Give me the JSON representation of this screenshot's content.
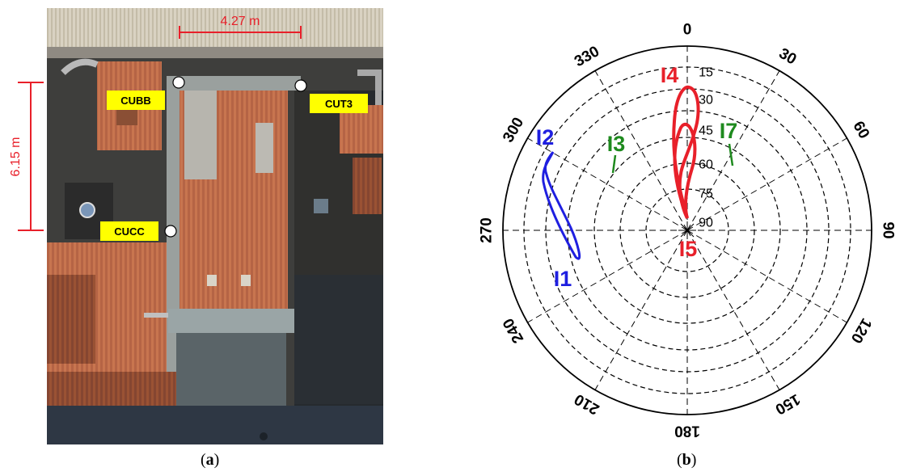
{
  "panel_a": {
    "caption": "a",
    "dimensions": {
      "horizontal": "4.27 m",
      "vertical": "6.15 m"
    },
    "markers": [
      {
        "label": "CUBB"
      },
      {
        "label": "CUT3"
      },
      {
        "label": "CUCC"
      }
    ],
    "colors": {
      "dimension": "#e8202a",
      "label_bg": "#ffff00"
    }
  },
  "panel_b": {
    "caption": "b",
    "azimuth_labels": [
      "0",
      "30",
      "60",
      "90",
      "120",
      "150",
      "180",
      "210",
      "240",
      "270",
      "300",
      "330"
    ],
    "elevation_labels": [
      "15",
      "30",
      "45",
      "60",
      "75",
      "90"
    ],
    "track_labels": [
      {
        "label": "I1",
        "color": "#1f1fe0"
      },
      {
        "label": "I2",
        "color": "#1f1fe0"
      },
      {
        "label": "I3",
        "color": "#1e8a1e"
      },
      {
        "label": "I4",
        "color": "#e8202a"
      },
      {
        "label": "I5",
        "color": "#e8202a"
      },
      {
        "label": "I7",
        "color": "#1e8a1e"
      }
    ]
  }
}
